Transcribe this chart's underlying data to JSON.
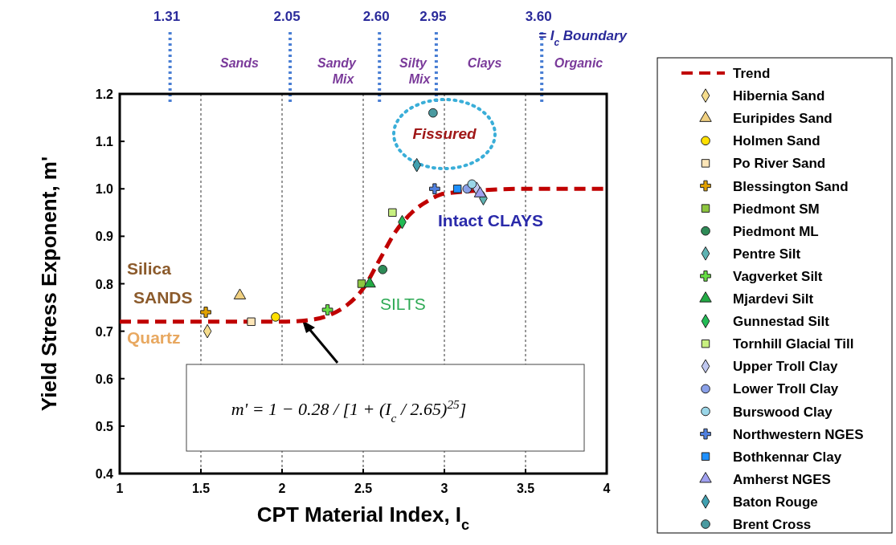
{
  "chart_data": {
    "type": "scatter",
    "xlabel": "CPT Material Index, I$_{c}$",
    "ylabel": "Yield Stress Exponent, m'",
    "xlim": [
      1,
      4
    ],
    "ylim": [
      0.4,
      1.2
    ],
    "xticks": [
      1,
      1.5,
      2,
      2.5,
      3,
      3.5,
      4
    ],
    "yticks": [
      0.4,
      0.5,
      0.6,
      0.7,
      0.8,
      0.9,
      {
        "value": 1,
        "label": "1.0"
      },
      1.1,
      1.2
    ],
    "grid": "x",
    "legend": "right",
    "series": [
      {
        "name": "Trend",
        "type": "line",
        "line_style": "dashed",
        "marker": "none",
        "color": "#c00000",
        "x": [
          1,
          1.5,
          2,
          2.2,
          2.3,
          2.4,
          2.5,
          2.6,
          2.7,
          2.8,
          2.9,
          3,
          3.5,
          4
        ],
        "values": [
          0.72,
          0.72,
          0.72,
          0.725,
          0.735,
          0.755,
          0.79,
          0.85,
          0.91,
          0.95,
          0.975,
          0.99,
          1,
          1
        ]
      },
      {
        "name": "Hibernia Sand",
        "marker": "diamond",
        "color": "#f5dc8c",
        "x": [
          1.54
        ],
        "values": [
          0.7
        ]
      },
      {
        "name": "Euripides Sand",
        "marker": "triangle",
        "color": "#f0d080",
        "x": [
          1.74
        ],
        "values": [
          0.775
        ]
      },
      {
        "name": "Holmen Sand",
        "marker": "circle",
        "color": "#ffe000",
        "x": [
          1.96
        ],
        "values": [
          0.73
        ]
      },
      {
        "name": "Po River Sand",
        "marker": "square",
        "color": "#fde6b8",
        "x": [
          1.81
        ],
        "values": [
          0.72
        ]
      },
      {
        "name": "Blessington Sand",
        "marker": "cross",
        "color": "#e0a000",
        "x": [
          1.53
        ],
        "values": [
          0.74
        ]
      },
      {
        "name": "Piedmont SM",
        "marker": "square",
        "color": "#8dc63f",
        "x": [
          2.49
        ],
        "values": [
          0.8
        ]
      },
      {
        "name": "Piedmont ML",
        "marker": "circle",
        "color": "#2e8b57",
        "x": [
          2.62
        ],
        "values": [
          0.83
        ]
      },
      {
        "name": "Pentre Silt",
        "marker": "diamond",
        "color": "#5fb3b3",
        "x": [
          3.24
        ],
        "values": [
          0.98
        ]
      },
      {
        "name": "Vagverket Silt",
        "marker": "cross",
        "color": "#66dd44",
        "x": [
          2.28
        ],
        "values": [
          0.745
        ]
      },
      {
        "name": "Mjardevi Silt",
        "marker": "triangle",
        "color": "#22aa44",
        "x": [
          2.54
        ],
        "values": [
          0.8
        ]
      },
      {
        "name": "Gunnestad Silt",
        "marker": "diamond",
        "color": "#22bb55",
        "x": [
          2.74
        ],
        "values": [
          0.93
        ]
      },
      {
        "name": "Tornhill Glacial Till",
        "marker": "square",
        "color": "#c8f080",
        "x": [
          2.68
        ],
        "values": [
          0.95
        ]
      },
      {
        "name": "Upper Troll Clay",
        "marker": "diamond",
        "color": "#c0c8f0",
        "x": [
          3.2
        ],
        "values": [
          1
        ]
      },
      {
        "name": "Lower Troll Clay",
        "marker": "circle",
        "color": "#8aa0e8",
        "x": [
          3.14
        ],
        "values": [
          1
        ]
      },
      {
        "name": "Burswood Clay",
        "marker": "circle",
        "color": "#9ad6e8",
        "x": [
          3.17
        ],
        "values": [
          1.01
        ]
      },
      {
        "name": "Northwestern NGES",
        "marker": "cross",
        "color": "#5080e0",
        "x": [
          2.94
        ],
        "values": [
          1
        ]
      },
      {
        "name": "Bothkennar Clay",
        "marker": "square",
        "color": "#1e90ff",
        "x": [
          3.08
        ],
        "values": [
          1
        ]
      },
      {
        "name": "Amherst NGES",
        "marker": "triangle",
        "color": "#a0a0f0",
        "x": [
          3.22
        ],
        "values": [
          0.99
        ]
      },
      {
        "name": "Baton Rouge",
        "marker": "diamond",
        "color": "#40a0b0",
        "x": [
          2.83
        ],
        "values": [
          1.05
        ]
      },
      {
        "name": "Brent Cross",
        "marker": "circle",
        "color": "#4a9aa0",
        "x": [
          2.93
        ],
        "values": [
          1.16
        ]
      }
    ],
    "ref_lines": [
      {
        "axis": "x",
        "value": 1.31,
        "label": "1.31",
        "color": "#4a7fd4",
        "line_style": "dotted"
      },
      {
        "axis": "x",
        "value": 2.05,
        "label": "2.05",
        "color": "#4a7fd4",
        "line_style": "dotted"
      },
      {
        "axis": "x",
        "value": 2.6,
        "label": "2.60",
        "color": "#4a7fd4",
        "line_style": "dotted"
      },
      {
        "axis": "x",
        "value": 2.95,
        "label": "2.95",
        "color": "#4a7fd4",
        "line_style": "dotted"
      },
      {
        "axis": "x",
        "value": 3.6,
        "label": "3.60",
        "color": "#4a7fd4",
        "line_style": "dotted"
      }
    ],
    "annotations": [
      "= I$_{c}$ Boundary",
      "Sands",
      "Sandy Mix",
      "Silty Mix",
      "Clays",
      "Organic",
      "Silica SANDS",
      "Quartz",
      "SILTS",
      "Intact CLAYS",
      "Fissured",
      "m' = 1 − 0.28 / [1 + (I$_{c}$ / 2.65)$^{25}$]"
    ]
  }
}
